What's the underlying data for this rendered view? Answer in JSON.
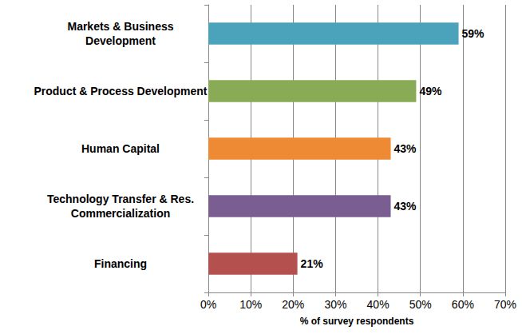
{
  "chart_data": {
    "type": "bar",
    "orientation": "horizontal",
    "categories": [
      "Markets & Business\nDevelopment",
      "Product & Process Development",
      "Human Capital",
      "Technology Transfer & Res.\nCommercialization",
      "Financing"
    ],
    "values": [
      59,
      49,
      43,
      43,
      21
    ],
    "value_labels": [
      "59%",
      "49%",
      "43%",
      "43%",
      "21%"
    ],
    "colors": [
      "#4aa3bb",
      "#8aab55",
      "#ee8a33",
      "#7a5e92",
      "#b4514e"
    ],
    "xlabel": "% of survey respondents",
    "xlim": [
      0,
      70
    ],
    "xticks": [
      {
        "value": 0,
        "label": "0%"
      },
      {
        "value": 10,
        "label": "10%"
      },
      {
        "value": 20,
        "label": "20%"
      },
      {
        "value": 30,
        "label": "30%"
      },
      {
        "value": 40,
        "label": "40%"
      },
      {
        "value": 50,
        "label": "50%"
      },
      {
        "value": 60,
        "label": "60%"
      },
      {
        "value": 70,
        "label": "70%"
      }
    ],
    "grid": true,
    "data_labels": true
  }
}
